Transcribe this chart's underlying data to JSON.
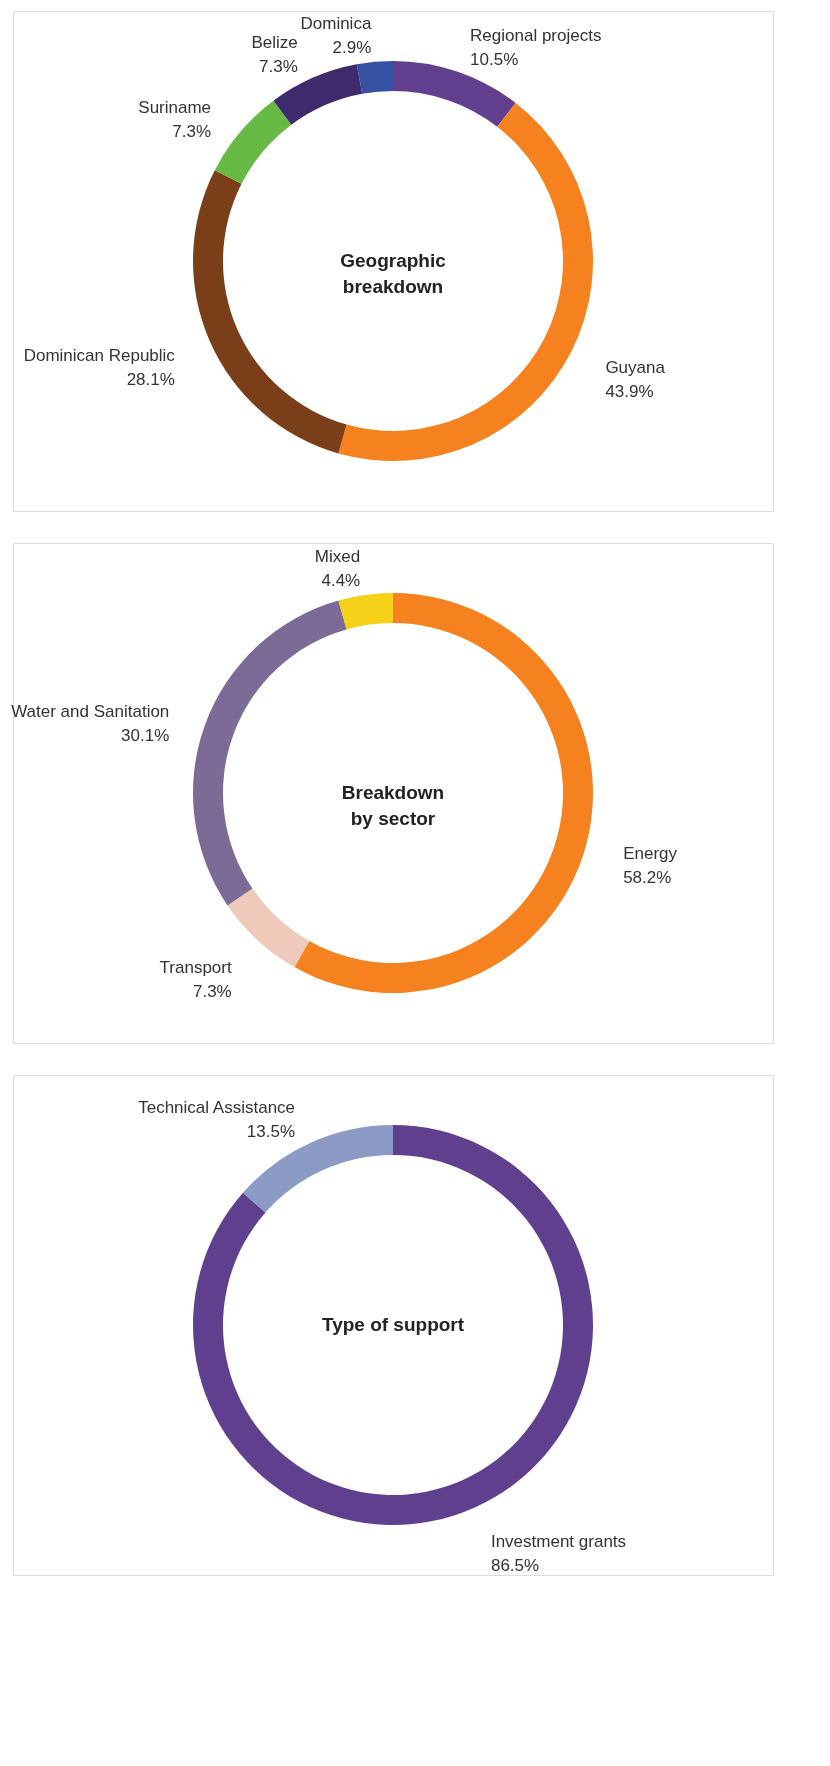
{
  "chart_data": [
    {
      "type": "donut",
      "title": "Geographic breakdown",
      "categories": [
        "Regional projects",
        "Guyana",
        "Dominican Republic",
        "Suriname",
        "Belize",
        "Dominica"
      ],
      "values": [
        10.5,
        43.9,
        28.1,
        7.3,
        7.3,
        2.9
      ],
      "value_labels": [
        "10.5%",
        "43.9%",
        "28.1%",
        "7.3%",
        "7.3%",
        "2.9%"
      ],
      "colors": [
        "#623e8f",
        "#f5821f",
        "#7a3f19",
        "#67bb45",
        "#3f2a6e",
        "#3651a3"
      ]
    },
    {
      "type": "donut",
      "title": "Breakdown by sector",
      "categories": [
        "Energy",
        "Transport",
        "Water and Sanitation",
        "Mixed"
      ],
      "values": [
        58.2,
        7.3,
        30.1,
        4.4
      ],
      "value_labels": [
        "58.2%",
        "7.3%",
        "30.1%",
        "4.4%"
      ],
      "colors": [
        "#f5821f",
        "#efc9b9",
        "#7b6b96",
        "#f4d21a"
      ]
    },
    {
      "type": "donut",
      "title": "Type of support",
      "categories": [
        "Investment grants",
        "Technical Assistance"
      ],
      "values": [
        86.5,
        13.5
      ],
      "value_labels": [
        "86.5%",
        "13.5%"
      ],
      "colors": [
        "#613f8f",
        "#8c9bc6"
      ]
    }
  ]
}
